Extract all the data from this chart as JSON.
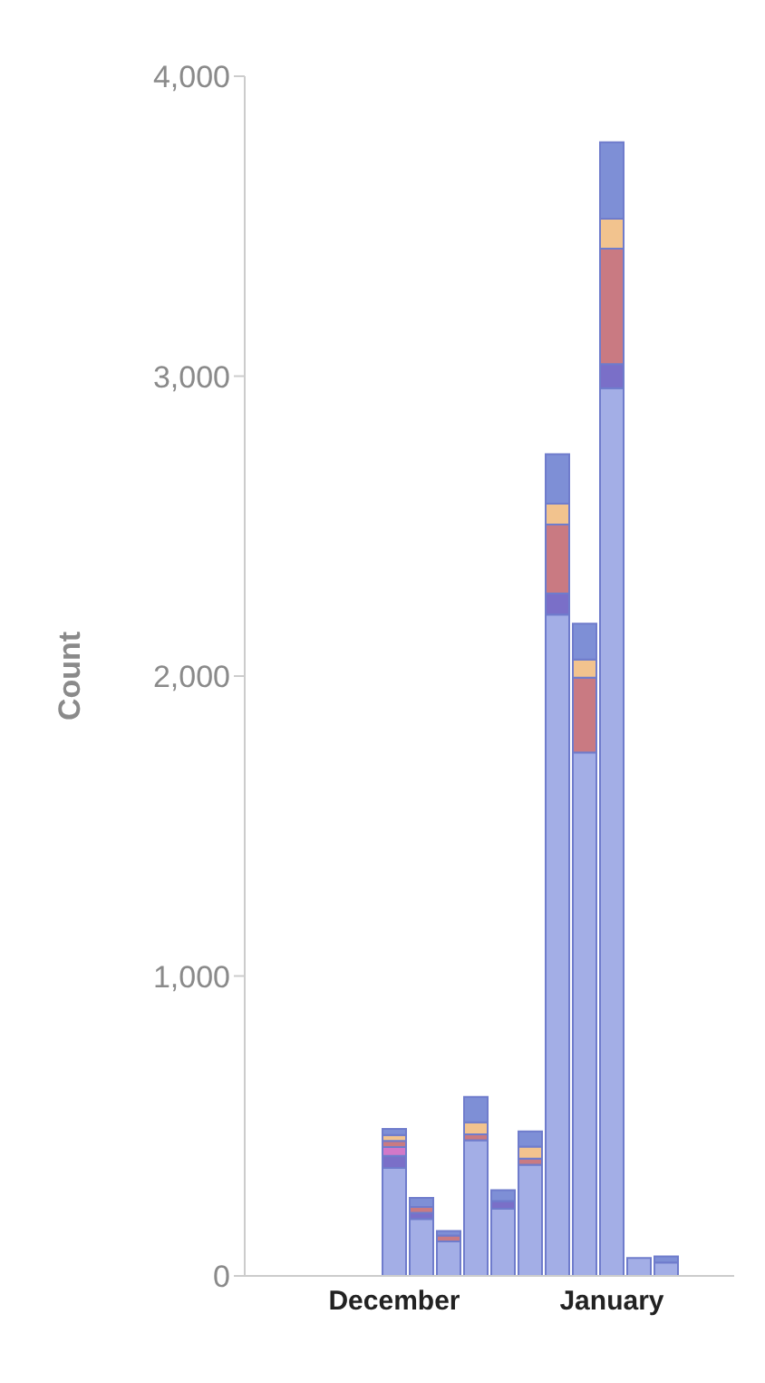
{
  "chart_data": {
    "type": "bar",
    "stacked": true,
    "ylabel": "Count",
    "categories": [
      null,
      null,
      null,
      null,
      null,
      "December",
      null,
      null,
      null,
      null,
      null,
      null,
      null,
      "January",
      null,
      null,
      null,
      null
    ],
    "series": [
      {
        "color": "#a3aee6",
        "values": [
          null,
          null,
          null,
          null,
          null,
          360,
          190,
          115,
          452,
          224,
          371,
          2205,
          1745,
          2960,
          60,
          45,
          null,
          null
        ]
      },
      {
        "color": "#7a6fc8",
        "values": [
          null,
          null,
          null,
          null,
          null,
          40,
          20,
          null,
          null,
          26,
          null,
          70,
          null,
          80,
          null,
          null,
          null,
          null
        ]
      },
      {
        "color": "#d278c8",
        "values": [
          null,
          null,
          null,
          null,
          null,
          30,
          null,
          null,
          null,
          null,
          null,
          null,
          null,
          null,
          null,
          null,
          null,
          null
        ]
      },
      {
        "color": "#c97a82",
        "values": [
          null,
          null,
          null,
          null,
          null,
          20,
          20,
          20,
          20,
          null,
          20,
          230,
          250,
          385,
          null,
          null,
          null,
          null
        ]
      },
      {
        "color": "#f2c38e",
        "values": [
          null,
          null,
          null,
          null,
          null,
          20,
          null,
          null,
          40,
          null,
          40,
          70,
          60,
          100,
          null,
          null,
          null,
          null
        ]
      },
      {
        "color": "#7e8fd6",
        "values": [
          null,
          null,
          null,
          null,
          null,
          20,
          30,
          15,
          85,
          36,
          51,
          165,
          120,
          255,
          null,
          20,
          null,
          null
        ]
      }
    ],
    "ylim": [
      0,
      4000
    ],
    "yticks": [
      {
        "value": 0,
        "label": "0"
      },
      {
        "value": 1000,
        "label": "1,000"
      },
      {
        "value": 2000,
        "label": "2,000"
      },
      {
        "value": 3000,
        "label": "3,000"
      },
      {
        "value": 4000,
        "label": "4,000"
      }
    ],
    "grid": false,
    "legend": false
  }
}
